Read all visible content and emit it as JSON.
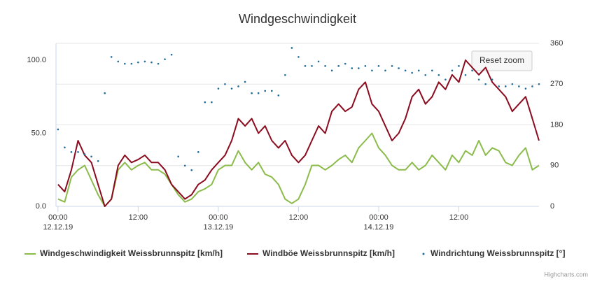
{
  "chart_data": {
    "type": "line",
    "title": "Windgeschwindigkeit",
    "button": "Reset zoom",
    "credits": "Highcharts.com",
    "x": [
      0,
      1,
      2,
      3,
      4,
      5,
      6,
      7,
      8,
      9,
      10,
      11,
      12,
      13,
      14,
      15,
      16,
      17,
      18,
      19,
      20,
      21,
      22,
      23,
      24,
      25,
      26,
      27,
      28,
      29,
      30,
      31,
      32,
      33,
      34,
      35,
      36,
      37,
      38,
      39,
      40,
      41,
      42,
      43,
      44,
      45,
      46,
      47,
      48,
      49,
      50,
      51,
      52,
      53,
      54,
      55,
      56,
      57,
      58,
      59,
      60,
      61,
      62,
      63,
      64,
      65,
      66,
      67,
      68,
      69,
      70,
      71,
      72
    ],
    "xlim": [
      -0.3,
      72
    ],
    "xticks": [
      {
        "value": 0,
        "label": "00:00\n12.12.19"
      },
      {
        "value": 12,
        "label": "12:00"
      },
      {
        "value": 24,
        "label": "00:00\n13.12.19"
      },
      {
        "value": 36,
        "label": "12:00"
      },
      {
        "value": 48,
        "label": "00:00\n14.12.19"
      },
      {
        "value": 60,
        "label": "12:00"
      }
    ],
    "ylim": [
      0,
      111.5
    ],
    "yticks": [
      {
        "value": 0,
        "label": "0.0"
      },
      {
        "value": 50,
        "label": "50.0"
      },
      {
        "value": 100,
        "label": "100.0"
      }
    ],
    "y2lim": [
      0,
      360
    ],
    "y2ticks": [
      0,
      90,
      180,
      270,
      360
    ],
    "grid": true,
    "legend": "bottom",
    "series": [
      {
        "name": "Windgeschwindigkeit Weissbrunnspitz [km/h]",
        "color": "#8bbc4b",
        "type": "line",
        "values": [
          5,
          3,
          20,
          25,
          28,
          18,
          8,
          0,
          5,
          25,
          30,
          25,
          28,
          30,
          25,
          25,
          22,
          15,
          8,
          3,
          5,
          10,
          12,
          15,
          25,
          28,
          28,
          38,
          30,
          25,
          30,
          22,
          20,
          15,
          5,
          2,
          5,
          15,
          28,
          28,
          25,
          28,
          32,
          35,
          30,
          40,
          45,
          50,
          40,
          35,
          28,
          25,
          25,
          30,
          25,
          28,
          35,
          30,
          25,
          35,
          30,
          38,
          35,
          45,
          35,
          40,
          38,
          30,
          28,
          35,
          40,
          25,
          28
        ]
      },
      {
        "name": "Windböe Weissbrunnspitz [km/h]",
        "color": "#8b0b1f",
        "type": "line",
        "values": [
          15,
          10,
          25,
          45,
          35,
          30,
          15,
          0,
          5,
          28,
          35,
          30,
          32,
          35,
          30,
          30,
          25,
          15,
          10,
          5,
          8,
          15,
          18,
          25,
          30,
          35,
          45,
          60,
          55,
          60,
          50,
          55,
          45,
          40,
          45,
          35,
          30,
          35,
          45,
          55,
          50,
          65,
          70,
          65,
          68,
          80,
          85,
          70,
          65,
          55,
          45,
          50,
          60,
          75,
          80,
          70,
          75,
          85,
          80,
          90,
          85,
          100,
          95,
          90,
          95,
          85,
          80,
          75,
          65,
          70,
          75,
          60,
          45
        ]
      },
      {
        "name": "Windrichtung Weissbrunnspitz [°]",
        "color": "#1f6c9a",
        "type": "scatter",
        "axis": "y2",
        "values": [
          170,
          130,
          120,
          120,
          115,
          110,
          100,
          250,
          330,
          320,
          315,
          315,
          318,
          320,
          318,
          315,
          325,
          335,
          110,
          90,
          80,
          120,
          230,
          230,
          260,
          270,
          260,
          265,
          275,
          250,
          250,
          255,
          255,
          245,
          290,
          350,
          330,
          310,
          310,
          320,
          310,
          300,
          310,
          315,
          305,
          305,
          310,
          300,
          310,
          300,
          310,
          305,
          300,
          295,
          300,
          290,
          300,
          290,
          280,
          300,
          310,
          290,
          300,
          280,
          270,
          280,
          265,
          265,
          270,
          265,
          260,
          265,
          270
        ]
      }
    ]
  }
}
